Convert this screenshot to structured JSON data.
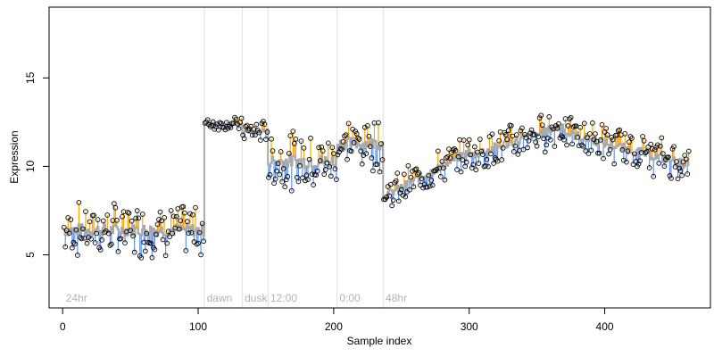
{
  "chart_data": {
    "type": "scatter",
    "xlabel": "Sample index",
    "ylabel": "Expression",
    "xlim": [
      -10,
      478
    ],
    "ylim": [
      2,
      19
    ],
    "x_ticks": [
      0,
      100,
      200,
      300,
      400
    ],
    "y_ticks": [
      5,
      10,
      15
    ],
    "grid": false,
    "colors": {
      "above_fit": "#ffa500",
      "below_fit": "#6495ed",
      "fit_line": "#a9a9a9",
      "points": "#000000",
      "phase_lines": "#e0e0e0",
      "phase_text": "#b3b3b3"
    },
    "phases": [
      {
        "label": "24hr",
        "start": 1
      },
      {
        "label": "dawn",
        "start": 105
      },
      {
        "label": "dusk",
        "start": 133
      },
      {
        "label": "12:00",
        "start": 152
      },
      {
        "label": "0:00",
        "start": 203
      },
      {
        "label": "48hr",
        "start": 237
      }
    ],
    "segments": [
      {
        "from": 1,
        "to": 104,
        "level": 6.4,
        "noise": 1.2,
        "lo": 2.9,
        "hi": 8.6
      },
      {
        "from": 105,
        "to": 132,
        "level": 12.4,
        "noise": 0.3,
        "lo": 11.5,
        "hi": 12.9
      },
      {
        "from": 133,
        "to": 151,
        "level": 12.0,
        "noise": 0.5,
        "lo": 11.0,
        "hi": 13.0
      },
      {
        "from": 152,
        "to": 202,
        "level": 10.3,
        "noise": 1.3,
        "lo": 6.2,
        "hi": 12.0
      },
      {
        "from": 203,
        "to": 236,
        "level": 11.3,
        "noise": 1.2,
        "lo": 6.8,
        "hi": 12.9
      },
      {
        "from": 237,
        "to": 300,
        "level": 8.3,
        "noise": 0.8,
        "lo": 6.2,
        "hi": 11.5,
        "slope": 0.04
      },
      {
        "from": 301,
        "to": 370,
        "level": 10.6,
        "noise": 0.9,
        "lo": 9.4,
        "hi": 14.0,
        "slope": 0.025
      },
      {
        "from": 371,
        "to": 462,
        "level": 11.9,
        "noise": 0.9,
        "lo": 9.3,
        "hi": 13.8,
        "slope": -0.02
      }
    ]
  }
}
